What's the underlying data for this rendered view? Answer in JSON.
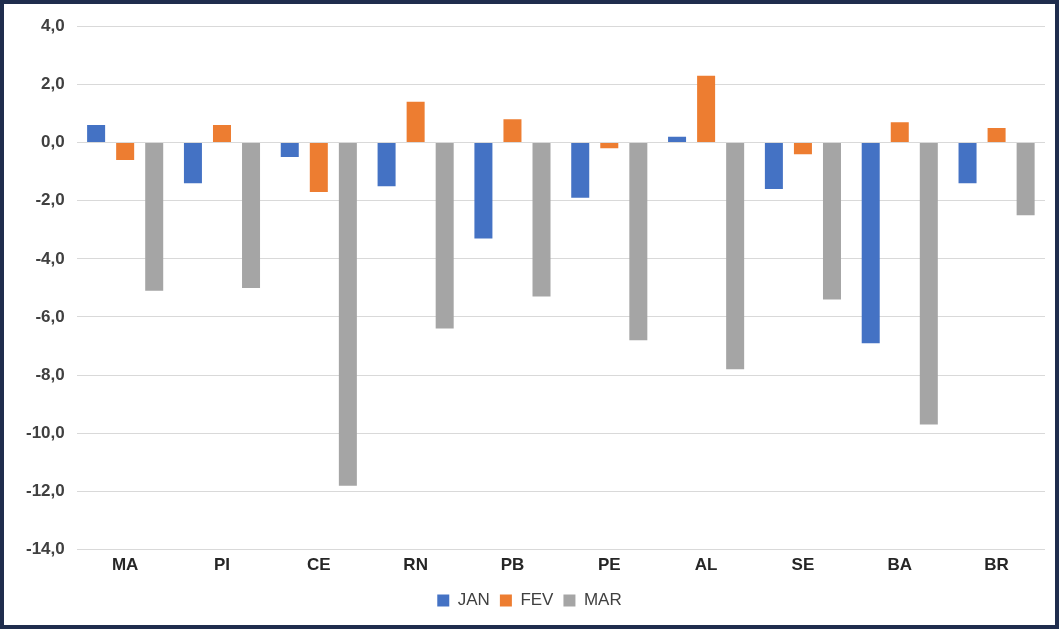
{
  "chart_data": {
    "type": "bar",
    "categories": [
      "MA",
      "PI",
      "CE",
      "RN",
      "PB",
      "PE",
      "AL",
      "SE",
      "BA",
      "BR"
    ],
    "series": [
      {
        "name": "JAN",
        "color": "#4472c4",
        "values": [
          0.6,
          -1.4,
          -0.5,
          -1.5,
          -3.3,
          -1.9,
          0.2,
          -1.6,
          -6.9,
          -1.4
        ]
      },
      {
        "name": "FEV",
        "color": "#ed7d31",
        "values": [
          -0.6,
          0.6,
          -1.7,
          1.4,
          0.8,
          -0.2,
          2.3,
          -0.4,
          0.7,
          0.5
        ]
      },
      {
        "name": "MAR",
        "color": "#a5a5a5",
        "values": [
          -5.1,
          -5.0,
          -11.8,
          -6.4,
          -5.3,
          -6.8,
          -7.8,
          -5.4,
          -9.7,
          -2.5
        ]
      }
    ],
    "ylim": [
      -14,
      4
    ],
    "yticks": [
      {
        "value": -14,
        "label": "-14,0"
      },
      {
        "value": -12,
        "label": "-12,0"
      },
      {
        "value": -10,
        "label": "-10,0"
      },
      {
        "value": -8,
        "label": "-8,0"
      },
      {
        "value": -6,
        "label": "-6,0"
      },
      {
        "value": -4,
        "label": "-4,0"
      },
      {
        "value": -2,
        "label": "-2,0"
      },
      {
        "value": 0,
        "label": "0,0"
      },
      {
        "value": 2,
        "label": "2,0"
      },
      {
        "value": 4,
        "label": "4,0"
      }
    ],
    "grid": "y",
    "legend": "bottom"
  }
}
